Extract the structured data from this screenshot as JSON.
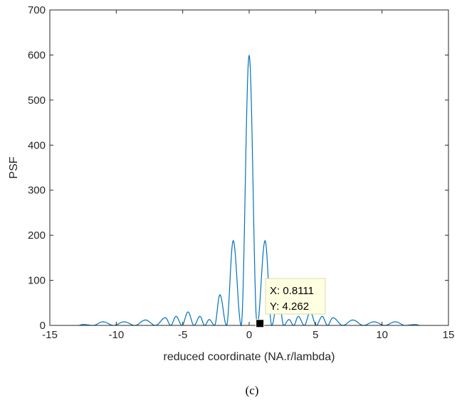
{
  "chart_data": {
    "type": "line",
    "title": "",
    "xlabel": "reduced coordinate (NA.r/lambda)",
    "ylabel": "PSF",
    "xlim": [
      -15,
      15
    ],
    "ylim": [
      0,
      700
    ],
    "xticks": [
      -15,
      -10,
      -5,
      0,
      5,
      10,
      15
    ],
    "yticks": [
      0,
      100,
      200,
      300,
      400,
      500,
      600,
      700
    ],
    "xtick_labels": [
      "-15",
      "-10",
      "-5",
      "0",
      "5",
      "10",
      "15"
    ],
    "ytick_labels": [
      "0",
      "100",
      "200",
      "300",
      "400",
      "500",
      "600",
      "700"
    ],
    "grid": false,
    "legend": "none",
    "line_color": "#0072BD",
    "series": [
      {
        "x": [
          -12.5,
          -11.0,
          -9.4,
          -7.8,
          -6.3,
          -5.5,
          -4.6,
          -3.7,
          -3.0,
          -2.2,
          -1.2,
          0.0,
          1.2,
          2.2,
          3.0,
          3.7,
          4.6,
          5.5,
          6.3,
          7.8,
          9.4,
          11.0,
          12.5
        ],
        "y": [
          2,
          8,
          8,
          12,
          17,
          20,
          30,
          20,
          13,
          68,
          188,
          600,
          188,
          68,
          13,
          20,
          30,
          20,
          17,
          12,
          8,
          8,
          2
        ]
      }
    ],
    "datatip": {
      "x": 0.8111,
      "y": 4.262,
      "line1": "X: 0.8111",
      "line2": "Y: 4.262"
    }
  },
  "caption": "(c)"
}
